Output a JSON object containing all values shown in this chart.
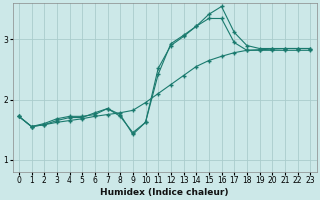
{
  "title": "",
  "xlabel": "Humidex (Indice chaleur)",
  "ylabel": "",
  "background_color": "#cce8e8",
  "grid_color": "#aacccc",
  "line_color": "#1a7a6e",
  "xlim": [
    -0.5,
    23.5
  ],
  "ylim": [
    0.8,
    3.6
  ],
  "yticks": [
    1,
    2,
    3
  ],
  "xticks": [
    0,
    1,
    2,
    3,
    4,
    5,
    6,
    7,
    8,
    9,
    10,
    11,
    12,
    13,
    14,
    15,
    16,
    17,
    18,
    19,
    20,
    21,
    22,
    23
  ],
  "series": [
    {
      "x": [
        0,
        1,
        2,
        3,
        4,
        5,
        6,
        7,
        8,
        9,
        10,
        11,
        12,
        13,
        14,
        15,
        16,
        17,
        18,
        19,
        20,
        21,
        22,
        23
      ],
      "y": [
        1.72,
        1.55,
        1.58,
        1.62,
        1.65,
        1.68,
        1.72,
        1.75,
        1.78,
        1.82,
        1.95,
        2.1,
        2.25,
        2.4,
        2.55,
        2.65,
        2.72,
        2.78,
        2.82,
        2.83,
        2.84,
        2.85,
        2.85,
        2.85
      ]
    },
    {
      "x": [
        0,
        1,
        2,
        3,
        4,
        5,
        6,
        7,
        8,
        9,
        10,
        11,
        12,
        13,
        14,
        15,
        16,
        17,
        18,
        19,
        20,
        21,
        22,
        23
      ],
      "y": [
        1.72,
        1.55,
        1.58,
        1.65,
        1.7,
        1.7,
        1.78,
        1.85,
        1.72,
        1.45,
        1.62,
        2.42,
        2.93,
        3.07,
        3.22,
        3.35,
        3.35,
        2.95,
        2.82,
        2.82,
        2.82,
        2.82,
        2.82,
        2.82
      ]
    },
    {
      "x": [
        0,
        1,
        2,
        3,
        4,
        5,
        6,
        7,
        8,
        9,
        10,
        11,
        12,
        13,
        14,
        15,
        16,
        17,
        18,
        19,
        20,
        21,
        22,
        23
      ],
      "y": [
        1.72,
        1.55,
        1.6,
        1.68,
        1.72,
        1.72,
        1.75,
        1.85,
        1.75,
        1.42,
        1.62,
        2.52,
        2.9,
        3.05,
        3.22,
        3.42,
        3.55,
        3.12,
        2.9,
        2.85,
        2.85,
        2.85,
        2.85,
        2.85
      ]
    }
  ],
  "xlabel_fontsize": 6.5,
  "tick_fontsize": 5.5
}
